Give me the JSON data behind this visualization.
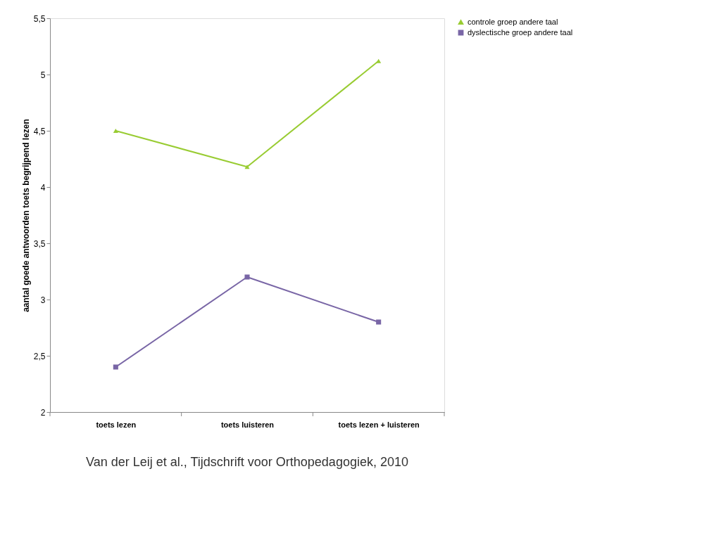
{
  "chart_data": {
    "type": "line",
    "ylabel": "aantal goede antwoorden toets begrijpend lezen",
    "categories": [
      "toets lezen",
      "toets luisteren",
      "toets lezen + luisteren"
    ],
    "series": [
      {
        "name": "controle groep andere taal",
        "color": "#99cc33",
        "marker": "triangle",
        "values": [
          4.5,
          4.18,
          5.12
        ]
      },
      {
        "name": "dyslectische groep andere taal",
        "color": "#7966a6",
        "marker": "square",
        "values": [
          2.4,
          3.2,
          2.8
        ]
      }
    ],
    "ylim": [
      2,
      5.5
    ],
    "yticks": [
      2,
      {
        "value": 2.5,
        "label": "2,5"
      },
      3,
      {
        "value": 3.5,
        "label": "3,5"
      },
      4,
      {
        "value": 4.5,
        "label": "4,5"
      },
      5,
      {
        "value": 5.5,
        "label": "5,5"
      }
    ],
    "grid": false,
    "legend": "right",
    "annotations": [
      "Van der Leij et al., Tijdschrift voor Orthopedagogiek, 2010"
    ]
  }
}
